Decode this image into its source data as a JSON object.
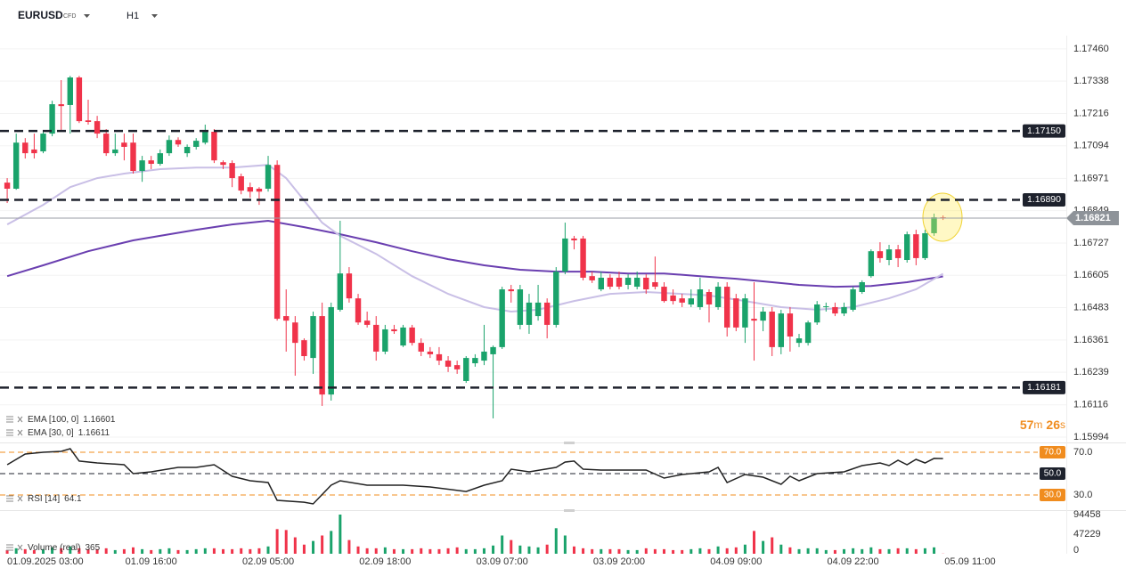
{
  "chart_data": {
    "type": "candlestick",
    "symbol": "EURUSD",
    "symbol_type": "CFD",
    "interval": "H1",
    "up_color": "#1aa36b",
    "down_color": "#f0334a",
    "grid": true,
    "xlim": [
      -0.8,
      117.5
    ],
    "xticks": [
      {
        "value": 3,
        "label": "01.09.2025 03:00"
      },
      {
        "value": 16,
        "label": "01.09 16:00"
      },
      {
        "value": 29,
        "label": "02.09 05:00"
      },
      {
        "value": 42,
        "label": "02.09 18:00"
      },
      {
        "value": 55,
        "label": "03.09 07:00"
      },
      {
        "value": 68,
        "label": "03.09 20:00"
      },
      {
        "value": 81,
        "label": "04.09 09:00"
      },
      {
        "value": 94,
        "label": "04.09 22:00"
      },
      {
        "value": 107,
        "label": "05.09 11:00"
      }
    ],
    "ylim": [
      1.15974,
      1.1751
    ],
    "yticks": [
      {
        "value": 1.1746,
        "label": "1.17460"
      },
      1.17338,
      1.17216,
      1.17094,
      1.16971,
      1.16849,
      1.16727,
      1.16605,
      1.16483,
      1.16361,
      1.16239,
      1.16116,
      1.15994
    ],
    "levels": [
      {
        "value": 1.1715,
        "label": "1.17150"
      },
      {
        "value": 1.1689,
        "label": "1.16890"
      },
      1.16181
    ],
    "current_price": 1.16821,
    "candles": [
      [
        1.16955,
        1.16972,
        1.16878,
        1.16932
      ],
      [
        1.16932,
        1.1714,
        1.16928,
        1.17106
      ],
      [
        1.17106,
        1.17123,
        1.17046,
        1.17066
      ],
      [
        1.1708,
        1.1714,
        1.17046,
        1.17066
      ],
      [
        1.17073,
        1.17147,
        1.17066,
        1.1714
      ],
      [
        1.1714,
        1.17264,
        1.1713,
        1.17251
      ],
      [
        1.17251,
        1.17342,
        1.17147,
        1.17244
      ],
      [
        1.17248,
        1.17358,
        1.1714,
        1.17352
      ],
      [
        1.17352,
        1.17358,
        1.1718,
        1.17187
      ],
      [
        1.1719,
        1.17268,
        1.17174,
        1.17184
      ],
      [
        1.17187,
        1.17207,
        1.17123,
        1.1714
      ],
      [
        1.1714,
        1.17157,
        1.17056,
        1.17066
      ],
      [
        1.17066,
        1.1714,
        1.17056,
        1.1708
      ],
      [
        1.17106,
        1.1714,
        1.17039,
        1.1709
      ],
      [
        1.17106,
        1.1714,
        1.16989,
        1.16999
      ],
      [
        1.16999,
        1.17056,
        1.16958,
        1.17039
      ],
      [
        1.17039,
        1.17056,
        1.17006,
        1.17026
      ],
      [
        1.17026,
        1.1708,
        1.17019,
        1.17066
      ],
      [
        1.17066,
        1.17133,
        1.17056,
        1.17116
      ],
      [
        1.17116,
        1.17126,
        1.1709,
        1.17099
      ],
      [
        1.17066,
        1.17099,
        1.17052,
        1.1709
      ],
      [
        1.1709,
        1.17123,
        1.1708,
        1.17113
      ],
      [
        1.17106,
        1.17174,
        1.17099,
        1.17147
      ],
      [
        1.17147,
        1.17157,
        1.17029,
        1.17039
      ],
      [
        1.17032,
        1.17039,
        1.17006,
        1.17022
      ],
      [
        1.17029,
        1.17039,
        1.16938,
        1.16972
      ],
      [
        1.16979,
        1.16989,
        1.16911,
        1.16925
      ],
      [
        1.16938,
        1.16955,
        1.16898,
        1.16921
      ],
      [
        1.16932,
        1.16938,
        1.16871,
        1.16921
      ],
      [
        1.16932,
        1.17056,
        1.16921,
        1.17022
      ],
      [
        1.17022,
        1.17039,
        1.16434,
        1.16441
      ],
      [
        1.16451,
        1.16552,
        1.16317,
        1.16434
      ],
      [
        1.16427,
        1.16451,
        1.16226,
        1.1635
      ],
      [
        1.1636,
        1.16367,
        1.16283,
        1.163
      ],
      [
        1.16293,
        1.16468,
        1.16233,
        1.16451
      ],
      [
        1.16451,
        1.16502,
        1.16112,
        1.16155
      ],
      [
        1.16155,
        1.16502,
        1.16132,
        1.16485
      ],
      [
        1.16475,
        1.16811,
        1.16468,
        1.16612
      ],
      [
        1.16612,
        1.16636,
        1.16502,
        1.16518
      ],
      [
        1.16518,
        1.16535,
        1.16418,
        1.16427
      ],
      [
        1.16434,
        1.16468,
        1.16408,
        1.16418
      ],
      [
        1.16418,
        1.16451,
        1.16283,
        1.16317
      ],
      [
        1.16317,
        1.16418,
        1.16307,
        1.16401
      ],
      [
        1.16401,
        1.16418,
        1.16384,
        1.16394
      ],
      [
        1.1634,
        1.16418,
        1.16334,
        1.16408
      ],
      [
        1.16408,
        1.16418,
        1.1634,
        1.1635
      ],
      [
        1.1635,
        1.16367,
        1.163,
        1.16317
      ],
      [
        1.16317,
        1.16334,
        1.16293,
        1.16307
      ],
      [
        1.16307,
        1.16334,
        1.16266,
        1.16283
      ],
      [
        1.16283,
        1.163,
        1.1624,
        1.1626
      ],
      [
        1.16266,
        1.16283,
        1.16233,
        1.1625
      ],
      [
        1.16206,
        1.163,
        1.16199,
        1.16293
      ],
      [
        1.16273,
        1.16307,
        1.1626,
        1.16293
      ],
      [
        1.16283,
        1.16418,
        1.16266,
        1.16317
      ],
      [
        1.16307,
        1.1634,
        1.16065,
        1.16334
      ],
      [
        1.16334,
        1.16562,
        1.16327,
        1.16552
      ],
      [
        1.16552,
        1.16569,
        1.16502,
        1.16545
      ],
      [
        1.16418,
        1.16569,
        1.16401,
        1.16552
      ],
      [
        1.16418,
        1.16535,
        1.16384,
        1.16502
      ],
      [
        1.16451,
        1.16569,
        1.16434,
        1.16502
      ],
      [
        1.16502,
        1.16518,
        1.16367,
        1.16418
      ],
      [
        1.16418,
        1.16636,
        1.16408,
        1.16619
      ],
      [
        1.16619,
        1.16804,
        1.16609,
        1.16744
      ],
      [
        1.16744,
        1.16754,
        1.16703,
        1.16737
      ],
      [
        1.16744,
        1.16754,
        1.16586,
        1.16596
      ],
      [
        1.16602,
        1.16619,
        1.16576,
        1.16586
      ],
      [
        1.16552,
        1.16619,
        1.16545,
        1.16596
      ],
      [
        1.16596,
        1.16609,
        1.16552,
        1.16562
      ],
      [
        1.16596,
        1.16619,
        1.16552,
        1.16562
      ],
      [
        1.16569,
        1.16609,
        1.16552,
        1.16596
      ],
      [
        1.16562,
        1.16619,
        1.16552,
        1.16596
      ],
      [
        1.16596,
        1.16609,
        1.16535,
        1.16552
      ],
      [
        1.16579,
        1.16676,
        1.16552,
        1.16562
      ],
      [
        1.16562,
        1.16579,
        1.16502,
        1.16508
      ],
      [
        1.16529,
        1.16552,
        1.16495,
        1.16508
      ],
      [
        1.16518,
        1.16535,
        1.16485,
        1.16502
      ],
      [
        1.16495,
        1.16552,
        1.16485,
        1.16518
      ],
      [
        1.16485,
        1.16596,
        1.16475,
        1.16552
      ],
      [
        1.16542,
        1.16552,
        1.16427,
        1.16495
      ],
      [
        1.16485,
        1.16579,
        1.16475,
        1.16562
      ],
      [
        1.16562,
        1.16579,
        1.16374,
        1.16408
      ],
      [
        1.16518,
        1.16535,
        1.16394,
        1.16408
      ],
      [
        1.16408,
        1.16535,
        1.1635,
        1.16518
      ],
      [
        1.16441,
        1.16579,
        1.16283,
        1.16434
      ],
      [
        1.16434,
        1.16485,
        1.16394,
        1.16468
      ],
      [
        1.16468,
        1.16485,
        1.163,
        1.16334
      ],
      [
        1.16334,
        1.16475,
        1.16307,
        1.16461
      ],
      [
        1.16461,
        1.16485,
        1.16317,
        1.16374
      ],
      [
        1.1635,
        1.16384,
        1.16334,
        1.16367
      ],
      [
        1.1635,
        1.16434,
        1.1634,
        1.16427
      ],
      [
        1.16427,
        1.16508,
        1.16418,
        1.16495
      ],
      [
        1.16485,
        1.16502,
        1.16468,
        1.16488
      ],
      [
        1.16485,
        1.16502,
        1.16451,
        1.16461
      ],
      [
        1.16461,
        1.16502,
        1.16451,
        1.16485
      ],
      [
        1.16475,
        1.16562,
        1.16468,
        1.16552
      ],
      [
        1.16542,
        1.16586,
        1.16535,
        1.16579
      ],
      [
        1.16602,
        1.16703,
        1.16596,
        1.16696
      ],
      [
        1.16696,
        1.1673,
        1.16653,
        1.1667
      ],
      [
        1.16663,
        1.1672,
        1.16643,
        1.16703
      ],
      [
        1.16703,
        1.1672,
        1.16636,
        1.1667
      ],
      [
        1.16663,
        1.1677,
        1.16653,
        1.1676
      ],
      [
        1.1676,
        1.16777,
        1.16643,
        1.1667
      ],
      [
        1.1667,
        1.16777,
        1.16663,
        1.16764
      ],
      [
        1.16764,
        1.16838,
        1.16754,
        1.16824
      ],
      [
        1.16824,
        1.16831,
        1.16814,
        1.16821
      ]
    ],
    "series": [
      {
        "name": "EMA [100, 0]",
        "color": "#6a3fb0",
        "x": [
          0,
          4,
          9,
          14,
          17,
          21,
          25,
          29,
          33,
          37,
          41,
          45,
          49,
          53,
          57,
          61,
          65,
          69,
          73,
          77,
          81,
          85,
          88,
          92,
          96,
          100,
          104
        ],
        "values": [
          1.16602,
          1.16643,
          1.16696,
          1.16737,
          1.16754,
          1.16777,
          1.16797,
          1.16811,
          1.16787,
          1.1676,
          1.1673,
          1.16696,
          1.16666,
          1.16643,
          1.16626,
          1.16619,
          1.16619,
          1.16612,
          1.16612,
          1.16602,
          1.16592,
          1.16579,
          1.16569,
          1.16562,
          1.16565,
          1.16579,
          1.16601
        ]
      },
      {
        "name": "EMA [30, 0]",
        "color": "#c9bfe6",
        "x": [
          0,
          4,
          7,
          10,
          13,
          17,
          21,
          25,
          29,
          31,
          33,
          35,
          37,
          41,
          45,
          49,
          53,
          56,
          59,
          63,
          67,
          71,
          75,
          78,
          82,
          86,
          90,
          94,
          98,
          101,
          104
        ],
        "values": [
          1.16797,
          1.16871,
          1.16938,
          1.16972,
          1.16989,
          1.17006,
          1.17012,
          1.17012,
          1.17022,
          1.16972,
          1.16888,
          1.16804,
          1.16754,
          1.16686,
          1.16602,
          1.16535,
          1.16485,
          1.16468,
          1.16475,
          1.16508,
          1.16535,
          1.16542,
          1.16535,
          1.16529,
          1.16508,
          1.16485,
          1.16475,
          1.16485,
          1.16518,
          1.16552,
          1.16611
        ]
      }
    ],
    "countdown": [
      "57",
      "m",
      "26",
      "s"
    ],
    "rsi": {
      "name": "RSI [14]",
      "color": "#222222",
      "x": [
        0,
        2,
        4,
        6,
        7,
        8,
        10,
        13,
        14,
        16,
        19,
        21,
        23,
        25,
        27,
        29,
        30,
        33,
        34,
        36,
        37,
        40,
        44,
        47,
        51,
        53,
        55,
        56,
        58,
        61,
        62,
        63,
        64,
        66,
        71,
        73,
        75,
        78,
        79,
        80,
        82,
        84,
        86,
        87,
        88,
        90,
        93,
        95,
        97,
        98,
        99,
        100,
        101,
        102,
        103,
        104
      ],
      "values": [
        58.3,
        68.3,
        70,
        70.8,
        73.3,
        61.7,
        60,
        58.3,
        50,
        51.7,
        55.8,
        55.8,
        58.3,
        47.5,
        43.3,
        41.7,
        25,
        23.3,
        21.7,
        39.2,
        43.3,
        39.2,
        39.2,
        37.5,
        33.3,
        39.2,
        43.3,
        54.2,
        51.7,
        55.8,
        60.8,
        61.7,
        54.2,
        53.3,
        53.3,
        45.8,
        49.2,
        51.7,
        55.8,
        41.7,
        49.2,
        46.7,
        40,
        47.5,
        43.3,
        50,
        51.7,
        57.5,
        60,
        57.5,
        62.5,
        58.3,
        63.3,
        60,
        64.2,
        64.1
      ],
      "ylim": [
        16.7,
        78.3
      ],
      "yticks": [
        {
          "value": 70,
          "label": "70.0"
        },
        {
          "value": 30,
          "label": "30.0"
        }
      ],
      "levels": [
        {
          "value": 70,
          "label": "70.0",
          "color": "#f08c1e"
        },
        {
          "value": 50,
          "label": "50.0",
          "color": "#1e222d"
        },
        {
          "value": 30,
          "label": "30.0",
          "color": "#f08c1e"
        }
      ]
    },
    "volume": {
      "name": "Volume (real)",
      "values": [
        8800,
        13200,
        11000,
        8800,
        11000,
        15400,
        13200,
        17600,
        13200,
        11000,
        11000,
        13200,
        8800,
        11000,
        15400,
        11000,
        8800,
        11000,
        13200,
        8800,
        8800,
        11000,
        13200,
        13200,
        11000,
        11000,
        13200,
        11000,
        13200,
        17600,
        59400,
        57200,
        39600,
        22000,
        30800,
        44000,
        55000,
        94458,
        33000,
        17600,
        13200,
        13200,
        15400,
        11000,
        11000,
        11000,
        13200,
        11000,
        11000,
        13200,
        15400,
        11000,
        11000,
        13200,
        19800,
        44000,
        33000,
        19800,
        17600,
        15400,
        22000,
        61600,
        44000,
        17600,
        13200,
        11000,
        11000,
        11000,
        11000,
        8800,
        8800,
        13200,
        11000,
        11000,
        8800,
        8800,
        11000,
        13200,
        11000,
        17600,
        13200,
        15400,
        22000,
        55000,
        30800,
        39600,
        22000,
        15400,
        11000,
        13200,
        13200,
        8800,
        8800,
        11000,
        13200,
        11000,
        15400,
        11000,
        11000,
        13200,
        13200,
        11000,
        13200,
        15400,
        365
      ],
      "ylim": [
        0,
        100900
      ],
      "yticks": [
        94458,
        47229,
        0
      ]
    }
  }
}
